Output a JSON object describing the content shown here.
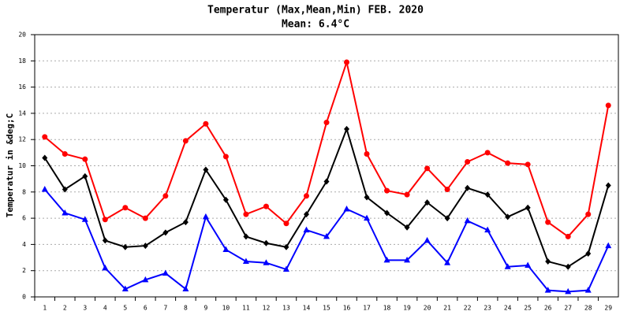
{
  "chart_data": {
    "type": "line",
    "title": "Temperatur (Max,Mean,Min) FEB. 2020",
    "subtitle": "Mean: 6.4°C",
    "y_label": "Temperatur in &deg;C",
    "categories": [
      "1",
      "2",
      "3",
      "4",
      "5",
      "6",
      "7",
      "8",
      "9",
      "10",
      "11",
      "12",
      "13",
      "14",
      "15",
      "16",
      "17",
      "18",
      "19",
      "20",
      "21",
      "22",
      "23",
      "24",
      "25",
      "26",
      "27",
      "28",
      "29"
    ],
    "series": [
      {
        "color": "#ff0000",
        "marker": "circle",
        "values": [
          12.2,
          10.9,
          10.5,
          5.9,
          6.8,
          6.0,
          7.7,
          11.9,
          13.2,
          10.7,
          6.3,
          6.9,
          5.6,
          7.7,
          13.3,
          17.9,
          10.9,
          8.1,
          7.8,
          9.8,
          8.2,
          10.3,
          11.0,
          10.2,
          10.1,
          5.7,
          4.6,
          6.3,
          14.6
        ]
      },
      {
        "color": "#000000",
        "marker": "diamond",
        "values": [
          10.6,
          8.2,
          9.2,
          4.3,
          3.8,
          3.9,
          4.9,
          5.7,
          9.7,
          7.4,
          4.6,
          4.1,
          3.8,
          6.3,
          8.8,
          12.8,
          7.6,
          6.4,
          5.3,
          7.2,
          6.0,
          8.3,
          7.8,
          6.1,
          6.8,
          2.7,
          2.3,
          3.3,
          8.5
        ]
      },
      {
        "color": "#0000ff",
        "marker": "triangle",
        "values": [
          8.2,
          6.4,
          5.9,
          2.2,
          0.6,
          1.3,
          1.8,
          0.6,
          6.1,
          3.6,
          2.7,
          2.6,
          2.1,
          5.1,
          4.6,
          6.7,
          6.0,
          2.8,
          2.8,
          4.3,
          2.6,
          5.8,
          5.1,
          2.3,
          2.4,
          0.5,
          0.4,
          0.5,
          3.9
        ]
      }
    ],
    "ylim": [
      0,
      20
    ],
    "yticks": [
      0,
      2,
      4,
      6,
      8,
      10,
      12,
      14,
      16,
      18,
      20
    ],
    "grid": true
  }
}
